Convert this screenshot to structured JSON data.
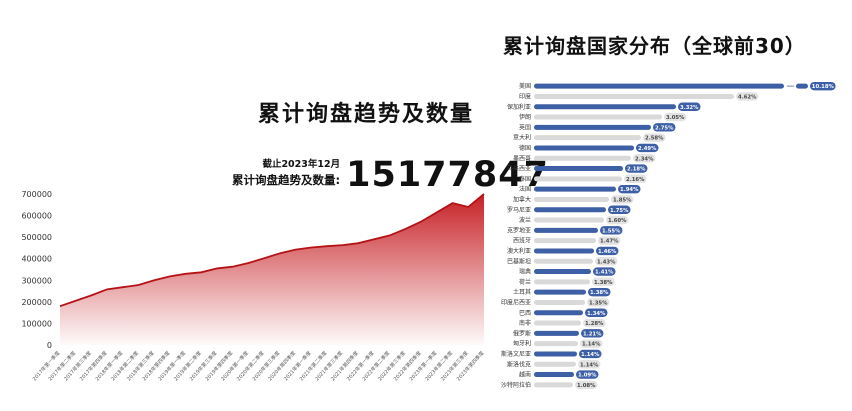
{
  "left_chart": {
    "title": "累计询盘趋势及数量",
    "asof": "截止2023年12月",
    "stat_label": "累计询盘趋势及数量:",
    "stat_value": "15177847"
  },
  "right_chart": {
    "title": "累计询盘国家分布（全球前30）"
  },
  "colors": {
    "area_red": "#c4171c",
    "area_line": "#b51216",
    "bar_blue": "#3d5fa6",
    "bar_gray": "#d9d9d9",
    "badge_gray_bg": "#e3e3e3",
    "badge_gray_text": "#444444",
    "badge_blue_text": "#ffffff",
    "axis_text": "#555555"
  },
  "chart_data": [
    {
      "type": "area",
      "title": "累计询盘趋势及数量",
      "xlabel": "",
      "ylabel": "",
      "ylim": [
        0,
        700000
      ],
      "yticks": [
        0,
        100000,
        200000,
        300000,
        400000,
        500000,
        600000,
        700000
      ],
      "grid": false,
      "legend": "none",
      "categories": [
        "2017年第一季度",
        "2017年第二季度",
        "2017年第三季度",
        "2017年第四季度",
        "2018年第一季度",
        "2018年第二季度",
        "2018年第三季度",
        "2018年第四季度",
        "2019年第一季度",
        "2019年第二季度",
        "2019年第三季度",
        "2019年第四季度",
        "2020年第一季度",
        "2020年第二季度",
        "2020年第三季度",
        "2020年第四季度",
        "2021年第一季度",
        "2021年第二季度",
        "2021年第三季度",
        "2021年第四季度",
        "2022年第一季度",
        "2022年第二季度",
        "2022年第三季度",
        "2022年第四季度",
        "2023年第一季度",
        "2023年第二季度",
        "2023年第三季度",
        "2023年第四季度"
      ],
      "values": [
        180000,
        205000,
        230000,
        258000,
        268000,
        278000,
        300000,
        318000,
        330000,
        337000,
        355000,
        363000,
        380000,
        402000,
        425000,
        442000,
        452000,
        458000,
        463000,
        472000,
        490000,
        508000,
        538000,
        572000,
        615000,
        658000,
        640000,
        700000
      ]
    },
    {
      "type": "bar",
      "orientation": "horizontal",
      "title": "累计询盘国家分布（全球前30）",
      "note": "top bar drawn with axis break",
      "rows": [
        {
          "label": "美国",
          "value": "10.18%",
          "color": "blue",
          "len": 250,
          "broken": true
        },
        {
          "label": "印度",
          "value": "4.62%",
          "color": "gray",
          "len": 200
        },
        {
          "label": "保加利亚",
          "value": "3.32%",
          "color": "blue",
          "len": 142
        },
        {
          "label": "伊朗",
          "value": "3.05%",
          "color": "gray",
          "len": 128
        },
        {
          "label": "英国",
          "value": "2.75%",
          "color": "blue",
          "len": 117
        },
        {
          "label": "意大利",
          "value": "2.58%",
          "color": "gray",
          "len": 107
        },
        {
          "label": "德国",
          "value": "2.49%",
          "color": "blue",
          "len": 100
        },
        {
          "label": "墨西哥",
          "value": "2.34%",
          "color": "gray",
          "len": 97
        },
        {
          "label": "马来西亚",
          "value": "2.18%",
          "color": "blue",
          "len": 89
        },
        {
          "label": "泰国",
          "value": "2.16%",
          "color": "gray",
          "len": 88
        },
        {
          "label": "法国",
          "value": "1.94%",
          "color": "blue",
          "len": 82
        },
        {
          "label": "加拿大",
          "value": "1.85%",
          "color": "gray",
          "len": 75
        },
        {
          "label": "罗马尼亚",
          "value": "1.75%",
          "color": "blue",
          "len": 72
        },
        {
          "label": "波兰",
          "value": "1.60%",
          "color": "gray",
          "len": 70
        },
        {
          "label": "克罗地亚",
          "value": "1.55%",
          "color": "blue",
          "len": 64
        },
        {
          "label": "西班牙",
          "value": "1.47%",
          "color": "gray",
          "len": 62
        },
        {
          "label": "澳大利亚",
          "value": "1.46%",
          "color": "blue",
          "len": 60
        },
        {
          "label": "巴基斯坦",
          "value": "1.43%",
          "color": "gray",
          "len": 59
        },
        {
          "label": "瑞典",
          "value": "1.41%",
          "color": "blue",
          "len": 57
        },
        {
          "label": "荷兰",
          "value": "1.38%",
          "color": "gray",
          "len": 56
        },
        {
          "label": "土耳其",
          "value": "1.38%",
          "color": "blue",
          "len": 52
        },
        {
          "label": "印度尼西亚",
          "value": "1.35%",
          "color": "gray",
          "len": 51
        },
        {
          "label": "巴西",
          "value": "1.34%",
          "color": "blue",
          "len": 49
        },
        {
          "label": "南非",
          "value": "1.28%",
          "color": "gray",
          "len": 47
        },
        {
          "label": "俄罗斯",
          "value": "1.21%",
          "color": "blue",
          "len": 45
        },
        {
          "label": "匈牙利",
          "value": "1.14%",
          "color": "gray",
          "len": 44
        },
        {
          "label": "斯洛文尼亚",
          "value": "1.14%",
          "color": "blue",
          "len": 43
        },
        {
          "label": "斯洛伐克",
          "value": "1.14%",
          "color": "gray",
          "len": 42
        },
        {
          "label": "越南",
          "value": "1.09%",
          "color": "blue",
          "len": 40
        },
        {
          "label": "沙特阿拉伯",
          "value": "1.08%",
          "color": "gray",
          "len": 39
        }
      ]
    }
  ]
}
